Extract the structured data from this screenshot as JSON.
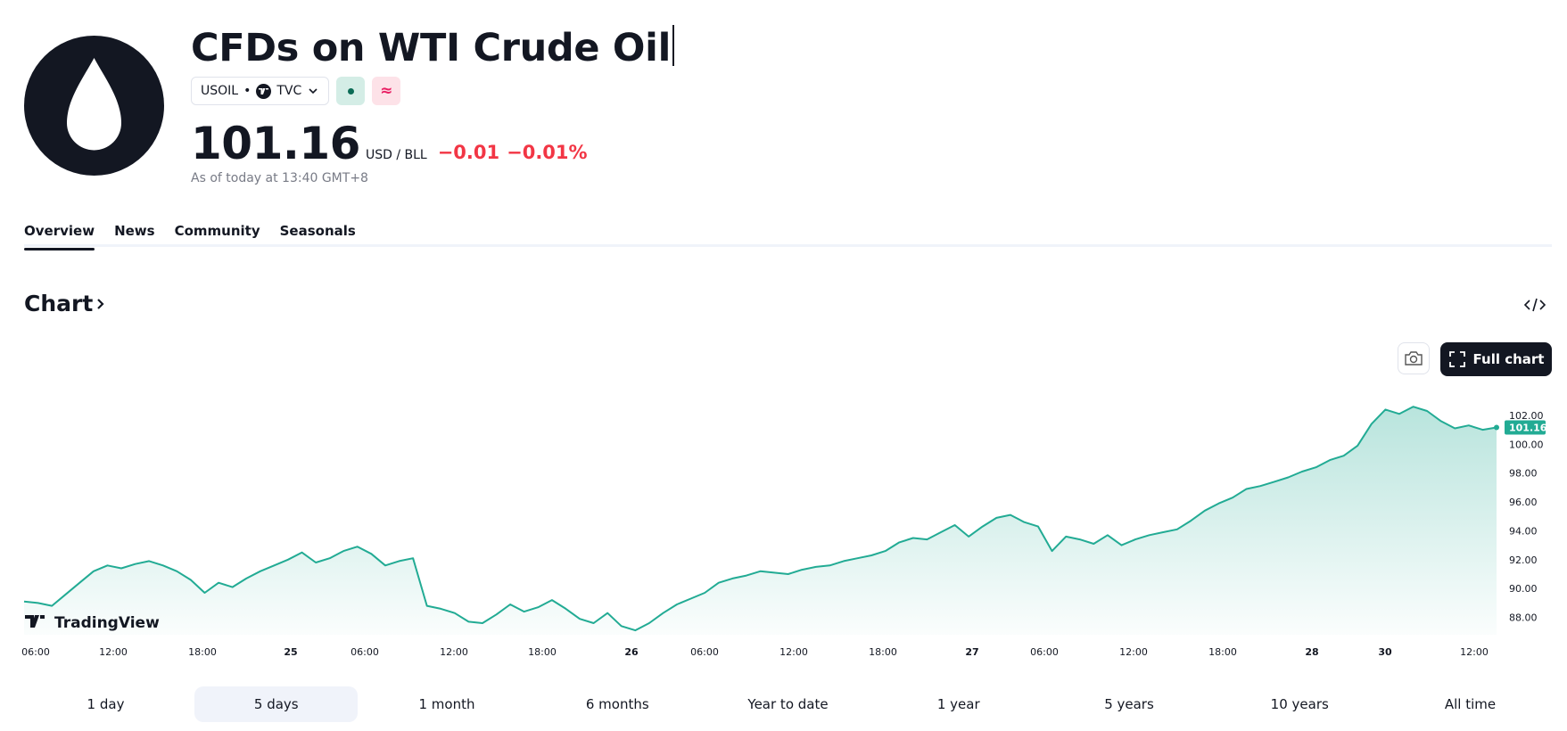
{
  "header": {
    "title": "CFDs on WTI Crude Oil",
    "symbol": "USOIL",
    "exchange": "TVC",
    "market_status_color": "#0b6b55",
    "approx_icon": "≈",
    "price": "101.16",
    "unit": "USD / BLL",
    "change": "−0.01",
    "change_percent": "−0.01%",
    "as_of": "As of today at 13:40 GMT+8"
  },
  "tabs": [
    {
      "label": "Overview",
      "active": true
    },
    {
      "label": "News",
      "active": false
    },
    {
      "label": "Community",
      "active": false
    },
    {
      "label": "Seasonals",
      "active": false
    }
  ],
  "chart_section": {
    "title": "Chart",
    "full_chart_label": "Full chart",
    "brand": "TradingView",
    "embed_icon": "code-embed-icon",
    "snapshot_icon": "camera-icon",
    "fullscreen_icon": "expand-icon"
  },
  "chart_data": {
    "type": "area",
    "line_color": "#22ab94",
    "fill_color": "#22ab94",
    "price_label_color": "#22ab94",
    "ylim": [
      86.8,
      103.6
    ],
    "y_ticks": [
      "102.00",
      "100.00",
      "98.00",
      "96.00",
      "94.00",
      "92.00",
      "90.00",
      "88.00"
    ],
    "last_price": "101.16",
    "x_ticks": [
      "06:00",
      "12:00",
      "18:00",
      "25",
      "06:00",
      "12:00",
      "18:00",
      "26",
      "06:00",
      "12:00",
      "18:00",
      "27",
      "06:00",
      "12:00",
      "18:00",
      "28",
      "30",
      "12:00"
    ],
    "x_ticks_bold": [
      false,
      false,
      false,
      true,
      false,
      false,
      false,
      true,
      false,
      false,
      false,
      true,
      false,
      false,
      false,
      true,
      true,
      false
    ],
    "series": [
      {
        "values": [
          89.1,
          89.0,
          88.8,
          89.6,
          90.4,
          91.2,
          91.6,
          91.4,
          91.7,
          91.9,
          91.6,
          91.2,
          90.6,
          89.7,
          90.4,
          90.1,
          90.7,
          91.2,
          91.6,
          92.0,
          92.5,
          91.8,
          92.1,
          92.6,
          92.9,
          92.4,
          91.6,
          91.9,
          92.1,
          88.8,
          88.6,
          88.3,
          87.7,
          87.6,
          88.2,
          88.9,
          88.4,
          88.7,
          89.2,
          88.6,
          87.9,
          87.6,
          88.3,
          87.4,
          87.1,
          87.6,
          88.3,
          88.9,
          89.3,
          89.7,
          90.4,
          90.7,
          90.9,
          91.2,
          91.1,
          91.0,
          91.3,
          91.5,
          91.6,
          91.9,
          92.1,
          92.3,
          92.6,
          93.2,
          93.5,
          93.4,
          93.9,
          94.4,
          93.6,
          94.3,
          94.9,
          95.1,
          94.6,
          94.3,
          92.6,
          93.6,
          93.4,
          93.1,
          93.7,
          93.0,
          93.4,
          93.7,
          93.9,
          94.1,
          94.7,
          95.4,
          95.9,
          96.3,
          96.9,
          97.1,
          97.4,
          97.7,
          98.1,
          98.4,
          98.9,
          99.2,
          99.9,
          101.4,
          102.4,
          102.1,
          102.6,
          102.3,
          101.6,
          101.1,
          101.3,
          101.0,
          101.16
        ]
      }
    ]
  },
  "ranges": [
    {
      "label": "1 day",
      "active": false
    },
    {
      "label": "5 days",
      "active": true
    },
    {
      "label": "1 month",
      "active": false
    },
    {
      "label": "6 months",
      "active": false
    },
    {
      "label": "Year to date",
      "active": false
    },
    {
      "label": "1 year",
      "active": false
    },
    {
      "label": "5 years",
      "active": false
    },
    {
      "label": "10 years",
      "active": false
    },
    {
      "label": "All time",
      "active": false
    }
  ]
}
